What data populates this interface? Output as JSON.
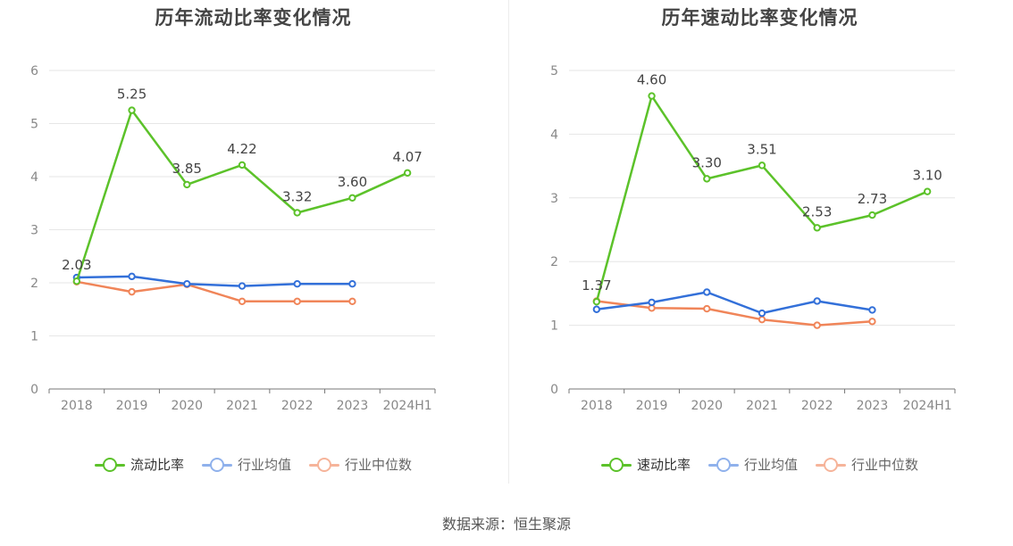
{
  "colors": {
    "primary": "#5cc22a",
    "avg": "#3370d9",
    "median": "#f08559"
  },
  "charts": [
    {
      "title": "历年流动比率变化情况",
      "legend": [
        "流动比率",
        "行业均值",
        "行业中位数"
      ]
    },
    {
      "title": "历年速动比率变化情况",
      "legend": [
        "速动比率",
        "行业均值",
        "行业中位数"
      ]
    }
  ],
  "source": "数据来源：恒生聚源",
  "chart_data": [
    {
      "type": "line",
      "title": "历年流动比率变化情况",
      "categories": [
        "2018",
        "2019",
        "2020",
        "2021",
        "2022",
        "2023",
        "2024H1"
      ],
      "ylim": [
        0,
        6
      ],
      "yticks": [
        0,
        1,
        2,
        3,
        4,
        5,
        6
      ],
      "grid": true,
      "legend_position": "bottom",
      "series": [
        {
          "name": "流动比率",
          "color": "#5cc22a",
          "labels": true,
          "values": [
            2.03,
            5.25,
            3.85,
            4.22,
            3.32,
            3.6,
            4.07
          ]
        },
        {
          "name": "行业均值",
          "color": "#3370d9",
          "labels": false,
          "values": [
            2.1,
            2.12,
            1.98,
            1.94,
            1.98,
            1.98,
            null
          ]
        },
        {
          "name": "行业中位数",
          "color": "#f08559",
          "labels": false,
          "values": [
            2.02,
            1.83,
            1.97,
            1.65,
            1.65,
            1.65,
            null
          ]
        }
      ]
    },
    {
      "type": "line",
      "title": "历年速动比率变化情况",
      "categories": [
        "2018",
        "2019",
        "2020",
        "2021",
        "2022",
        "2023",
        "2024H1"
      ],
      "ylim": [
        0,
        5
      ],
      "yticks": [
        0,
        1,
        2,
        3,
        4,
        5
      ],
      "grid": true,
      "legend_position": "bottom",
      "series": [
        {
          "name": "速动比率",
          "color": "#5cc22a",
          "labels": true,
          "values": [
            1.37,
            4.6,
            3.3,
            3.51,
            2.53,
            2.73,
            3.1
          ]
        },
        {
          "name": "行业均值",
          "color": "#3370d9",
          "labels": false,
          "values": [
            1.25,
            1.36,
            1.52,
            1.19,
            1.38,
            1.24,
            null
          ]
        },
        {
          "name": "行业中位数",
          "color": "#f08559",
          "labels": false,
          "values": [
            1.38,
            1.27,
            1.26,
            1.09,
            1.0,
            1.06,
            null
          ]
        }
      ]
    }
  ]
}
